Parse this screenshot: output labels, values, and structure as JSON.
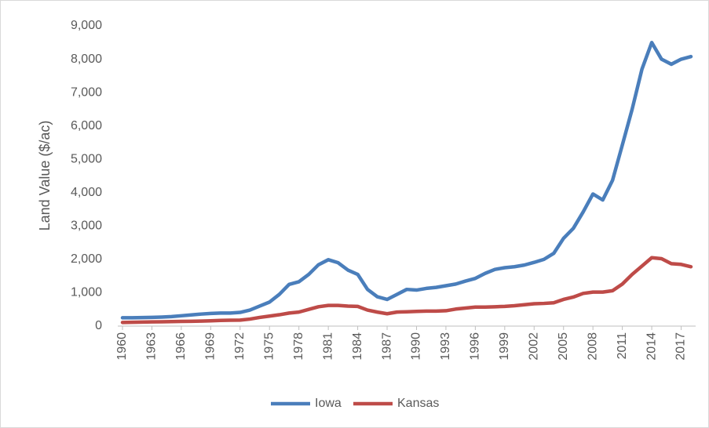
{
  "chart_data": {
    "type": "line",
    "y_label": "Land Value ($/ac)",
    "x": [
      1960,
      1961,
      1962,
      1963,
      1964,
      1965,
      1966,
      1967,
      1968,
      1969,
      1970,
      1971,
      1972,
      1973,
      1974,
      1975,
      1976,
      1977,
      1978,
      1979,
      1980,
      1981,
      1982,
      1983,
      1984,
      1985,
      1986,
      1987,
      1988,
      1989,
      1990,
      1991,
      1992,
      1993,
      1994,
      1995,
      1996,
      1997,
      1998,
      1999,
      2000,
      2001,
      2002,
      2003,
      2004,
      2005,
      2006,
      2007,
      2008,
      2009,
      2010,
      2011,
      2012,
      2013,
      2014,
      2015,
      2016,
      2017,
      2018
    ],
    "series": [
      {
        "name": "Iowa",
        "color": "#4a7ebb",
        "values": [
          250,
          250,
          255,
          260,
          270,
          285,
          310,
          335,
          360,
          380,
          390,
          390,
          410,
          480,
          600,
          720,
          950,
          1250,
          1330,
          1550,
          1840,
          1990,
          1900,
          1680,
          1550,
          1100,
          880,
          800,
          950,
          1100,
          1080,
          1130,
          1160,
          1210,
          1260,
          1350,
          1430,
          1580,
          1700,
          1750,
          1780,
          1830,
          1910,
          2000,
          2180,
          2630,
          2930,
          3420,
          3960,
          3780,
          4370,
          5430,
          6500,
          7700,
          8500,
          8000,
          7850,
          8000,
          8080
        ]
      },
      {
        "name": "Kansas",
        "color": "#be4b48",
        "values": [
          110,
          115,
          120,
          125,
          130,
          135,
          140,
          145,
          150,
          160,
          170,
          175,
          180,
          210,
          260,
          300,
          340,
          390,
          420,
          500,
          580,
          620,
          620,
          600,
          590,
          480,
          420,
          370,
          420,
          430,
          440,
          450,
          450,
          460,
          510,
          540,
          570,
          570,
          580,
          590,
          610,
          640,
          670,
          680,
          700,
          800,
          870,
          980,
          1020,
          1020,
          1060,
          1260,
          1550,
          1800,
          2050,
          2020,
          1870,
          1850,
          1780
        ]
      }
    ],
    "xlim": [
      1960,
      2018
    ],
    "xticks": [
      1960,
      1963,
      1966,
      1969,
      1972,
      1975,
      1978,
      1981,
      1984,
      1987,
      1990,
      1993,
      1996,
      1999,
      2002,
      2005,
      2008,
      2011,
      2014,
      2017
    ],
    "ylim": [
      0,
      9000
    ],
    "yticks": [
      0,
      {
        "value": 1000,
        "label": "1,000"
      },
      {
        "value": 2000,
        "label": "2,000"
      },
      {
        "value": 3000,
        "label": "3,000"
      },
      {
        "value": 4000,
        "label": "4,000"
      },
      {
        "value": 5000,
        "label": "5,000"
      },
      {
        "value": 6000,
        "label": "6,000"
      },
      {
        "value": 7000,
        "label": "7,000"
      },
      {
        "value": 8000,
        "label": "8,000"
      },
      {
        "value": 9000,
        "label": "9,000"
      }
    ],
    "grid": false,
    "legend": "bottom"
  }
}
